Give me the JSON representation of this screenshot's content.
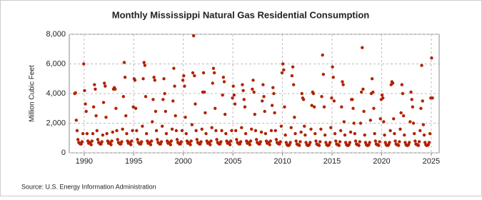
{
  "chart_data": {
    "type": "scatter",
    "title": "Monthly Mississippi Natural Gas Residential Consumption",
    "y_label": "Million Cubic Feet",
    "source": "Source: U.S. Energy Information Administration",
    "color": "#b22200",
    "grid": true,
    "xlim": [
      1988.5,
      2025.8
    ],
    "xticks": [
      1990,
      1995,
      2000,
      2005,
      2010,
      2015,
      2020,
      2025
    ],
    "ylim": [
      0,
      8000
    ],
    "yticks": [
      0,
      {
        "value": 2000,
        "label": "2,000"
      },
      {
        "value": 4000,
        "label": "4,000"
      },
      {
        "value": 6000,
        "label": "6,000"
      },
      {
        "value": 8000,
        "label": "8,000"
      }
    ],
    "x": [
      1989.042,
      1989.125,
      1989.208,
      1989.292,
      1989.375,
      1989.458,
      1989.542,
      1989.625,
      1989.708,
      1989.792,
      1989.875,
      1989.958,
      1990.042,
      1990.125,
      1990.208,
      1990.292,
      1990.375,
      1990.458,
      1990.542,
      1990.625,
      1990.708,
      1990.792,
      1990.875,
      1990.958,
      1991.042,
      1991.125,
      1991.208,
      1991.292,
      1991.375,
      1991.458,
      1991.542,
      1991.625,
      1991.708,
      1991.792,
      1991.875,
      1991.958,
      1992.042,
      1992.125,
      1992.208,
      1992.292,
      1992.375,
      1992.458,
      1992.542,
      1992.625,
      1992.708,
      1992.792,
      1992.875,
      1992.958,
      1993.042,
      1993.125,
      1993.208,
      1993.292,
      1993.375,
      1993.458,
      1993.542,
      1993.625,
      1993.708,
      1993.792,
      1993.875,
      1993.958,
      1994.042,
      1994.125,
      1994.208,
      1994.292,
      1994.375,
      1994.458,
      1994.542,
      1994.625,
      1994.708,
      1994.792,
      1994.875,
      1994.958,
      1995.042,
      1995.125,
      1995.208,
      1995.292,
      1995.375,
      1995.458,
      1995.542,
      1995.625,
      1995.708,
      1995.792,
      1995.875,
      1995.958,
      1996.042,
      1996.125,
      1996.208,
      1996.292,
      1996.375,
      1996.458,
      1996.542,
      1996.625,
      1996.708,
      1996.792,
      1996.875,
      1996.958,
      1997.042,
      1997.125,
      1997.208,
      1997.292,
      1997.375,
      1997.458,
      1997.542,
      1997.625,
      1997.708,
      1997.792,
      1997.875,
      1997.958,
      1998.042,
      1998.125,
      1998.208,
      1998.292,
      1998.375,
      1998.458,
      1998.542,
      1998.625,
      1998.708,
      1998.792,
      1998.875,
      1998.958,
      1999.042,
      1999.125,
      1999.208,
      1999.292,
      1999.375,
      1999.458,
      1999.542,
      1999.625,
      1999.708,
      1999.792,
      1999.875,
      1999.958,
      2000.042,
      2000.125,
      2000.208,
      2000.292,
      2000.375,
      2000.458,
      2000.542,
      2000.625,
      2000.708,
      2000.792,
      2000.875,
      2000.958,
      2001.042,
      2001.125,
      2001.208,
      2001.292,
      2001.375,
      2001.458,
      2001.542,
      2001.625,
      2001.708,
      2001.792,
      2001.875,
      2001.958,
      2002.042,
      2002.125,
      2002.208,
      2002.292,
      2002.375,
      2002.458,
      2002.542,
      2002.625,
      2002.708,
      2002.792,
      2002.875,
      2002.958,
      2003.042,
      2003.125,
      2003.208,
      2003.292,
      2003.375,
      2003.458,
      2003.542,
      2003.625,
      2003.708,
      2003.792,
      2003.875,
      2003.958,
      2004.042,
      2004.125,
      2004.208,
      2004.292,
      2004.375,
      2004.458,
      2004.542,
      2004.625,
      2004.708,
      2004.792,
      2004.875,
      2004.958,
      2005.042,
      2005.125,
      2005.208,
      2005.292,
      2005.375,
      2005.458,
      2005.542,
      2005.625,
      2005.708,
      2005.792,
      2005.875,
      2005.958,
      2006.042,
      2006.125,
      2006.208,
      2006.292,
      2006.375,
      2006.458,
      2006.542,
      2006.625,
      2006.708,
      2006.792,
      2006.875,
      2006.958,
      2007.042,
      2007.125,
      2007.208,
      2007.292,
      2007.375,
      2007.458,
      2007.542,
      2007.625,
      2007.708,
      2007.792,
      2007.875,
      2007.958,
      2008.042,
      2008.125,
      2008.208,
      2008.292,
      2008.375,
      2008.458,
      2008.542,
      2008.625,
      2008.708,
      2008.792,
      2008.875,
      2008.958,
      2009.042,
      2009.125,
      2009.208,
      2009.292,
      2009.375,
      2009.458,
      2009.542,
      2009.625,
      2009.708,
      2009.792,
      2009.875,
      2009.958,
      2010.042,
      2010.125,
      2010.208,
      2010.292,
      2010.375,
      2010.458,
      2010.542,
      2010.625,
      2010.708,
      2010.792,
      2010.875,
      2010.958,
      2011.042,
      2011.125,
      2011.208,
      2011.292,
      2011.375,
      2011.458,
      2011.542,
      2011.625,
      2011.708,
      2011.792,
      2011.875,
      2011.958,
      2012.042,
      2012.125,
      2012.208,
      2012.292,
      2012.375,
      2012.458,
      2012.542,
      2012.625,
      2012.708,
      2012.792,
      2012.875,
      2012.958,
      2013.042,
      2013.125,
      2013.208,
      2013.292,
      2013.375,
      2013.458,
      2013.542,
      2013.625,
      2013.708,
      2013.792,
      2013.875,
      2013.958,
      2014.042,
      2014.125,
      2014.208,
      2014.292,
      2014.375,
      2014.458,
      2014.542,
      2014.625,
      2014.708,
      2014.792,
      2014.875,
      2014.958,
      2015.042,
      2015.125,
      2015.208,
      2015.292,
      2015.375,
      2015.458,
      2015.542,
      2015.625,
      2015.708,
      2015.792,
      2015.875,
      2015.958,
      2016.042,
      2016.125,
      2016.208,
      2016.292,
      2016.375,
      2016.458,
      2016.542,
      2016.625,
      2016.708,
      2016.792,
      2016.875,
      2016.958,
      2017.042,
      2017.125,
      2017.208,
      2017.292,
      2017.375,
      2017.458,
      2017.542,
      2017.625,
      2017.708,
      2017.792,
      2017.875,
      2017.958,
      2018.042,
      2018.125,
      2018.208,
      2018.292,
      2018.375,
      2018.458,
      2018.542,
      2018.625,
      2018.708,
      2018.792,
      2018.875,
      2018.958,
      2019.042,
      2019.125,
      2019.208,
      2019.292,
      2019.375,
      2019.458,
      2019.542,
      2019.625,
      2019.708,
      2019.792,
      2019.875,
      2019.958,
      2020.042,
      2020.125,
      2020.208,
      2020.292,
      2020.375,
      2020.458,
      2020.542,
      2020.625,
      2020.708,
      2020.792,
      2020.875,
      2020.958,
      2021.042,
      2021.125,
      2021.208,
      2021.292,
      2021.375,
      2021.458,
      2021.542,
      2021.625,
      2021.708,
      2021.792,
      2021.875,
      2021.958,
      2022.042,
      2022.125,
      2022.208,
      2022.292,
      2022.375,
      2022.458,
      2022.542,
      2022.625,
      2022.708,
      2022.792,
      2022.875,
      2022.958,
      2023.042,
      2023.125,
      2023.208,
      2023.292,
      2023.375,
      2023.458,
      2023.542,
      2023.625,
      2023.708,
      2023.792,
      2023.875,
      2023.958,
      2024.042,
      2024.125,
      2024.208,
      2024.292,
      2024.375,
      2024.458,
      2024.542,
      2024.625,
      2024.708,
      2024.792,
      2024.875,
      2024.958,
      2025.042,
      2025.125
    ],
    "values": [
      4000,
      4050,
      2200,
      1500,
      900,
      700,
      650,
      600,
      600,
      750,
      1300,
      6000,
      4200,
      3300,
      2800,
      1300,
      800,
      650,
      700,
      650,
      550,
      800,
      1300,
      3100,
      4600,
      4300,
      2500,
      1500,
      900,
      700,
      650,
      600,
      600,
      750,
      1200,
      3400,
      4700,
      4500,
      2400,
      1300,
      800,
      650,
      700,
      650,
      550,
      800,
      1400,
      4300,
      4400,
      4300,
      3000,
      1500,
      900,
      700,
      650,
      600,
      600,
      750,
      1600,
      3800,
      6100,
      5100,
      2500,
      1300,
      800,
      650,
      700,
      650,
      550,
      800,
      1500,
      3100,
      5000,
      4900,
      3000,
      1500,
      900,
      700,
      650,
      600,
      600,
      750,
      1800,
      5000,
      6100,
      5900,
      3800,
      1300,
      800,
      650,
      700,
      650,
      550,
      800,
      2100,
      3600,
      5100,
      4900,
      2800,
      1500,
      900,
      700,
      650,
      600,
      600,
      750,
      1800,
      3600,
      5000,
      4000,
      2800,
      1300,
      800,
      650,
      700,
      650,
      550,
      800,
      1600,
      3500,
      5700,
      4500,
      2500,
      1500,
      900,
      700,
      650,
      600,
      600,
      750,
      1500,
      4900,
      5200,
      4500,
      2400,
      1300,
      800,
      650,
      700,
      650,
      550,
      800,
      1900,
      5400,
      7900,
      5200,
      3300,
      1500,
      900,
      700,
      650,
      600,
      600,
      750,
      1600,
      4100,
      5400,
      4100,
      2700,
      1300,
      800,
      650,
      700,
      650,
      550,
      800,
      1700,
      4700,
      5700,
      5400,
      3000,
      1500,
      900,
      700,
      650,
      600,
      600,
      750,
      1500,
      3900,
      5100,
      4800,
      2600,
      1300,
      800,
      650,
      700,
      650,
      550,
      800,
      1500,
      3700,
      4500,
      3900,
      3300,
      1500,
      900,
      700,
      650,
      600,
      600,
      750,
      1700,
      4600,
      4200,
      3600,
      3100,
      1300,
      800,
      650,
      700,
      650,
      550,
      800,
      1600,
      4300,
      4900,
      4100,
      2600,
      1500,
      900,
      700,
      650,
      600,
      600,
      750,
      1400,
      3500,
      4600,
      3800,
      2800,
      1300,
      800,
      650,
      700,
      650,
      550,
      800,
      1500,
      3200,
      4400,
      4000,
      2700,
      1500,
      900,
      700,
      650,
      600,
      600,
      750,
      1800,
      5400,
      6000,
      5600,
      3100,
      1200,
      700,
      550,
      500,
      500,
      550,
      700,
      1700,
      5200,
      5800,
      4600,
      2400,
      1300,
      800,
      600,
      550,
      550,
      500,
      750,
      1400,
      4000,
      3700,
      3600,
      1800,
      1200,
      700,
      550,
      500,
      500,
      550,
      700,
      1600,
      3200,
      4100,
      4000,
      3100,
      1300,
      800,
      600,
      550,
      550,
      500,
      750,
      1600,
      3800,
      6600,
      5300,
      3100,
      1200,
      700,
      550,
      500,
      500,
      550,
      700,
      1700,
      3700,
      5800,
      5100,
      3500,
      1300,
      800,
      600,
      550,
      550,
      500,
      750,
      1500,
      3100,
      4800,
      4600,
      2100,
      1200,
      700,
      550,
      500,
      500,
      550,
      700,
      1400,
      3600,
      3600,
      3000,
      2000,
      1300,
      800,
      600,
      550,
      550,
      500,
      750,
      2000,
      4100,
      7100,
      4300,
      2800,
      1200,
      700,
      550,
      500,
      500,
      550,
      700,
      2200,
      4000,
      5000,
      4100,
      3000,
      1300,
      800,
      600,
      550,
      550,
      500,
      750,
      2300,
      3600,
      3900,
      3700,
      2100,
      1200,
      700,
      550,
      500,
      500,
      550,
      700,
      1500,
      4600,
      4800,
      4700,
      2300,
      1300,
      800,
      600,
      550,
      550,
      500,
      750,
      1600,
      2700,
      4600,
      4000,
      2500,
      1200,
      700,
      550,
      500,
      500,
      550,
      700,
      2100,
      4100,
      3600,
      3100,
      2000,
      1300,
      800,
      600,
      550,
      550,
      500,
      750,
      1500,
      3000,
      5900,
      3500,
      1900,
      1200,
      700,
      550,
      500,
      500,
      550,
      700,
      1300,
      3700,
      6400,
      3700
    ]
  }
}
